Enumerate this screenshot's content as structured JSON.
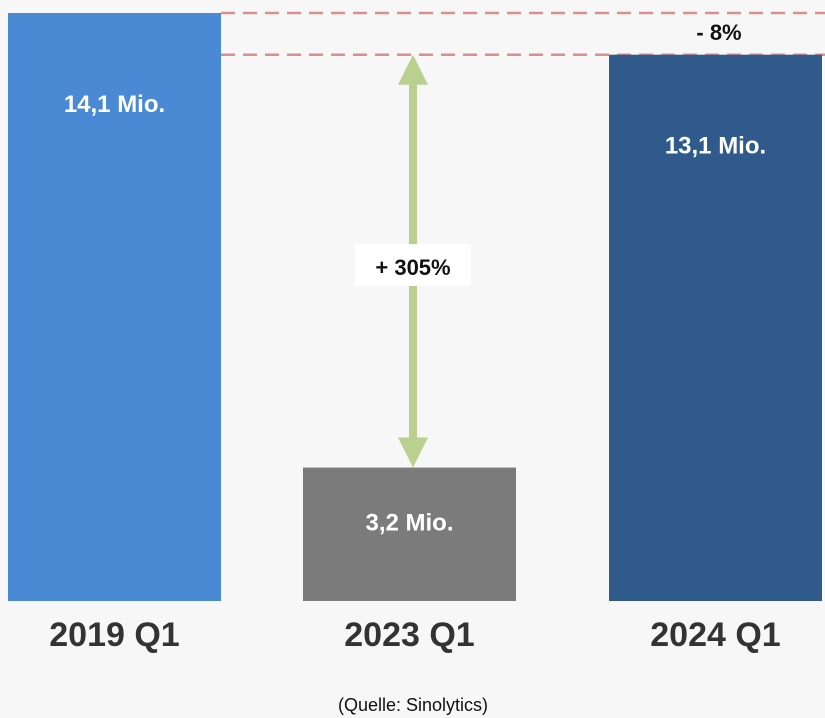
{
  "chart_data": {
    "type": "bar",
    "categories": [
      "2019 Q1",
      "2023 Q1",
      "2024 Q1"
    ],
    "values": [
      14.1,
      3.2,
      13.1
    ],
    "value_labels": [
      "14,1 Mio.",
      "3,2 Mio.",
      "13,1 Mio."
    ],
    "colors": [
      "#4a89d4",
      "#7b7b7b",
      "#2f5a8b"
    ],
    "ylim": [
      0,
      14.1
    ],
    "grid": false,
    "legend": "none",
    "annotations": [
      {
        "text": "+ 305%",
        "from_value": 3.2,
        "to_value": 13.1,
        "kind": "double-arrow",
        "color": "#b9d08f"
      },
      {
        "text": "- 8%",
        "kind": "dashed-reference-lines",
        "values": [
          14.1,
          13.1
        ],
        "color": "#d98f8f"
      }
    ]
  },
  "source": "(Quelle: Sinolytics)"
}
